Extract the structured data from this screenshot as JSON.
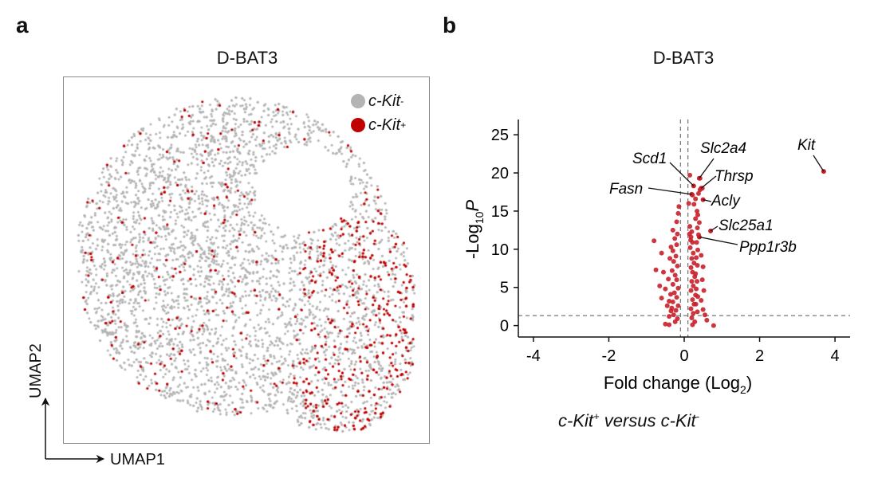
{
  "panels": {
    "a": "a",
    "b": "b"
  },
  "umap": {
    "title": "D-BAT3",
    "x_label": "UMAP1",
    "y_label": "UMAP2",
    "legend": [
      {
        "base": "c-Kit",
        "sup": "-",
        "color": "#b4b4b4"
      },
      {
        "base": "c-Kit",
        "sup": "+",
        "color": "#c00000"
      }
    ]
  },
  "caption": {
    "a": "c-Kit",
    "a_sup": "+",
    "mid": " versus ",
    "b": "c-Kit",
    "b_sup": "-"
  },
  "chart_data": [
    {
      "type": "scatter",
      "title": "D-BAT3",
      "xlabel": "UMAP1",
      "ylabel": "UMAP2",
      "series": [
        {
          "name": "c-Kit-",
          "color": "#b4b4b4"
        },
        {
          "name": "c-Kit+",
          "color": "#c00000"
        }
      ]
    },
    {
      "type": "scatter",
      "title": "D-BAT3",
      "xlabel": "Fold change (Log2)",
      "ylabel": "-Log10P",
      "xlim": [
        -4.4,
        4.4
      ],
      "ylim": [
        -1.5,
        27
      ],
      "xticks": [
        -4,
        -2,
        0,
        2,
        4
      ],
      "yticks": [
        0,
        5,
        10,
        15,
        20,
        25
      ],
      "point_color": "#c8202a",
      "threshold_lines": {
        "x": [
          -0.1,
          0.1
        ],
        "y": 1.3
      },
      "labeled_genes": [
        {
          "gene": "Kit",
          "x": 3.7,
          "y": 20.2
        },
        {
          "gene": "Scd1",
          "x": 0.25,
          "y": 18.3
        },
        {
          "gene": "Slc2a4",
          "x": 0.4,
          "y": 19.3
        },
        {
          "gene": "Thrsp",
          "x": 0.45,
          "y": 18.0
        },
        {
          "gene": "Fasn",
          "x": 0.2,
          "y": 17.2
        },
        {
          "gene": "Acly",
          "x": 0.5,
          "y": 16.5
        },
        {
          "gene": "Slc25a1",
          "x": 0.7,
          "y": 12.4
        },
        {
          "gene": "Ppp1r3b",
          "x": 0.4,
          "y": 11.6
        }
      ],
      "points": [
        [
          -0.8,
          11.1
        ],
        [
          -0.6,
          9.5
        ],
        [
          -0.75,
          7.3
        ],
        [
          -0.55,
          7.0
        ],
        [
          -0.65,
          5.2
        ],
        [
          -0.5,
          4.8
        ],
        [
          -0.6,
          3.6
        ],
        [
          -0.4,
          3.2
        ],
        [
          -0.45,
          2.6
        ],
        [
          -0.35,
          1.9
        ],
        [
          -0.5,
          0.2
        ],
        [
          -0.4,
          0.1
        ],
        [
          -0.3,
          12.5
        ],
        [
          -0.25,
          11.4
        ],
        [
          -0.2,
          10.6
        ],
        [
          -0.3,
          9.8
        ],
        [
          -0.22,
          9.1
        ],
        [
          -0.28,
          8.4
        ],
        [
          -0.18,
          7.8
        ],
        [
          -0.32,
          7.2
        ],
        [
          -0.24,
          6.6
        ],
        [
          -0.2,
          6.0
        ],
        [
          -0.3,
          5.4
        ],
        [
          -0.16,
          4.9
        ],
        [
          -0.26,
          4.3
        ],
        [
          -0.2,
          3.7
        ],
        [
          -0.3,
          3.1
        ],
        [
          -0.16,
          2.6
        ],
        [
          -0.22,
          2.0
        ],
        [
          -0.28,
          1.4
        ],
        [
          -0.18,
          0.9
        ],
        [
          -0.24,
          0.5
        ],
        [
          -0.2,
          13.6
        ],
        [
          -0.16,
          14.7
        ],
        [
          -0.14,
          15.6
        ],
        [
          -0.18,
          12.0
        ],
        [
          -0.35,
          10.3
        ],
        [
          -0.38,
          8.8
        ],
        [
          -0.42,
          6.1
        ],
        [
          -0.36,
          4.1
        ],
        [
          -0.33,
          2.3
        ],
        [
          -0.4,
          1.2
        ],
        [
          0.15,
          13.0
        ],
        [
          0.2,
          12.3
        ],
        [
          0.18,
          11.6
        ],
        [
          0.22,
          10.9
        ],
        [
          0.16,
          10.2
        ],
        [
          0.24,
          9.5
        ],
        [
          0.2,
          8.8
        ],
        [
          0.26,
          8.2
        ],
        [
          0.18,
          7.6
        ],
        [
          0.22,
          7.0
        ],
        [
          0.28,
          6.4
        ],
        [
          0.2,
          5.8
        ],
        [
          0.24,
          5.2
        ],
        [
          0.18,
          4.6
        ],
        [
          0.3,
          4.0
        ],
        [
          0.22,
          3.4
        ],
        [
          0.26,
          2.8
        ],
        [
          0.18,
          2.2
        ],
        [
          0.24,
          1.6
        ],
        [
          0.2,
          1.0
        ],
        [
          0.28,
          0.5
        ],
        [
          0.22,
          0.1
        ],
        [
          0.3,
          14.0
        ],
        [
          0.34,
          15.0
        ],
        [
          0.26,
          15.9
        ],
        [
          0.3,
          16.6
        ],
        [
          0.38,
          17.3
        ],
        [
          0.42,
          17.8
        ],
        [
          0.36,
          14.5
        ],
        [
          0.4,
          13.5
        ],
        [
          0.35,
          12.8
        ],
        [
          0.38,
          11.9
        ],
        [
          0.33,
          10.9
        ],
        [
          0.36,
          9.9
        ],
        [
          0.32,
          8.9
        ],
        [
          0.35,
          7.9
        ],
        [
          0.3,
          6.8
        ],
        [
          0.34,
          5.8
        ],
        [
          0.32,
          4.8
        ],
        [
          0.36,
          3.8
        ],
        [
          0.31,
          2.8
        ],
        [
          0.35,
          1.8
        ],
        [
          0.45,
          9.2
        ],
        [
          0.5,
          7.7
        ],
        [
          0.48,
          6.0
        ],
        [
          0.52,
          4.6
        ],
        [
          0.45,
          3.3
        ],
        [
          0.5,
          2.1
        ],
        [
          0.55,
          1.4
        ],
        [
          0.6,
          0.7
        ],
        [
          0.78,
          0.0
        ],
        [
          0.15,
          19.7
        ],
        [
          0.12,
          16.0
        ],
        [
          0.42,
          19.3
        ],
        [
          0.48,
          18.0
        ],
        [
          0.22,
          17.1
        ],
        [
          0.14,
          12.0
        ],
        [
          0.17,
          11.2
        ]
      ]
    }
  ]
}
